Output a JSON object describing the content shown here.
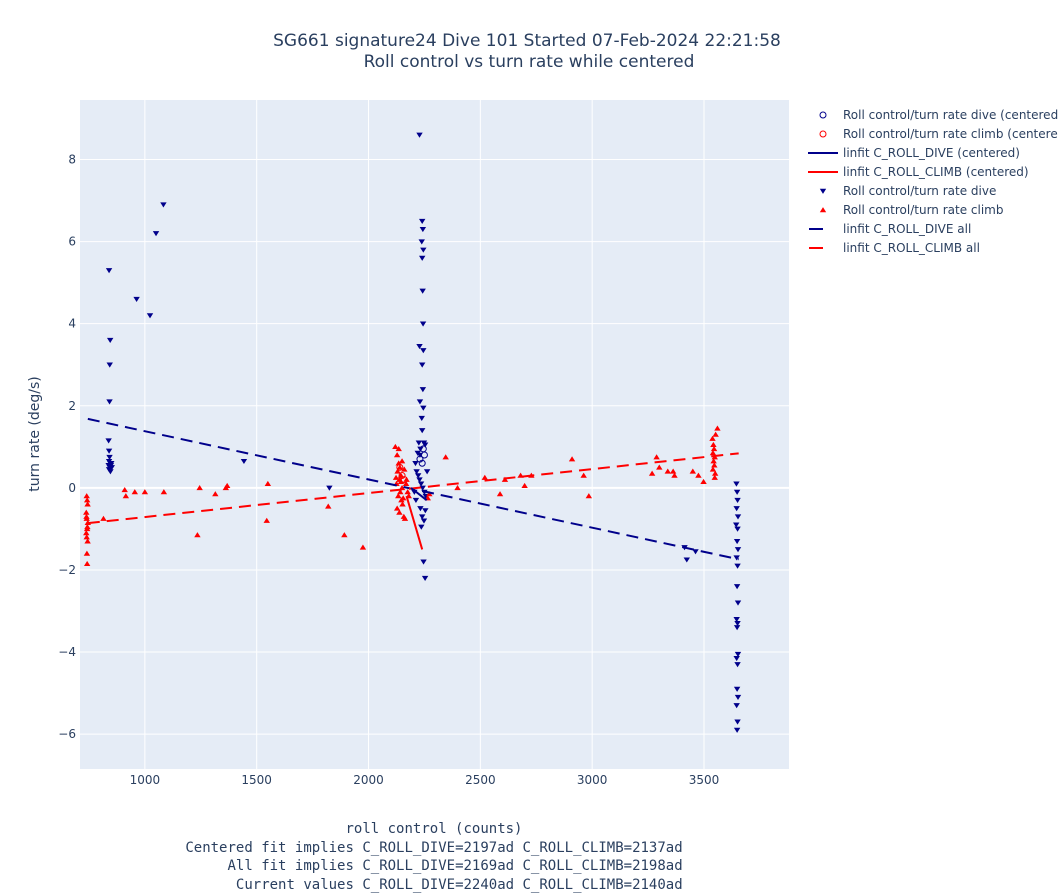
{
  "chart_data": {
    "type": "scatter",
    "title": "SG661 signature24 Dive 101 Started 07-Feb-2024 22:21:58",
    "subtitle": "Roll control vs turn rate while centered",
    "xlabel_lines": [
      "roll control (counts)",
      "Centered fit implies C_ROLL_DIVE=2197ad C_ROLL_CLIMB=2137ad",
      "     All fit implies C_ROLL_DIVE=2169ad C_ROLL_CLIMB=2198ad",
      "      Current values C_ROLL_DIVE=2240ad C_ROLL_CLIMB=2140ad"
    ],
    "ylabel": "turn rate (deg/s)",
    "xlim": [
      710,
      3880
    ],
    "ylim": [
      -6.85,
      9.45
    ],
    "xticks": [
      1000,
      1500,
      2000,
      2500,
      3000,
      3500
    ],
    "yticks": [
      -6,
      -4,
      -2,
      0,
      2,
      4,
      6,
      8
    ],
    "grid": true,
    "legend_position": "top-right-outside",
    "colors": {
      "dive": "#00008b",
      "climb": "#ff0000"
    },
    "series": [
      {
        "name": "Roll control/turn rate dive (centered)",
        "kind": "open-circle",
        "color": "#00008b",
        "points": [
          [
            2230,
            0.7
          ],
          [
            2245,
            0.95
          ],
          [
            2250,
            0.8
          ],
          [
            2240,
            0.6
          ]
        ]
      },
      {
        "name": "Roll control/turn rate climb (centered)",
        "kind": "open-circle",
        "color": "#ff0000",
        "points": [
          [
            2140,
            0.5
          ],
          [
            2150,
            0.3
          ],
          [
            2160,
            0.2
          ]
        ]
      },
      {
        "name": "linfit C_ROLL_DIVE (centered)",
        "kind": "line",
        "color": "#00008b",
        "points": [
          [
            2190,
            0.0
          ],
          [
            2260,
            -0.3
          ]
        ]
      },
      {
        "name": "linfit C_ROLL_CLIMB (centered)",
        "kind": "line",
        "color": "#ff0000",
        "points": [
          [
            2170,
            -0.2
          ],
          [
            2240,
            -1.5
          ]
        ]
      },
      {
        "name": "Roll control/turn rate dive",
        "kind": "triangle-down",
        "color": "#00008b",
        "points": [
          [
            840,
            5.3
          ],
          [
            845,
            3.6
          ],
          [
            843,
            3.0
          ],
          [
            842,
            2.1
          ],
          [
            838,
            1.15
          ],
          [
            840,
            0.9
          ],
          [
            842,
            0.75
          ],
          [
            840,
            0.65
          ],
          [
            845,
            0.6
          ],
          [
            838,
            0.55
          ],
          [
            843,
            0.5
          ],
          [
            840,
            0.45
          ],
          [
            846,
            0.4
          ],
          [
            850,
            0.6
          ],
          [
            848,
            0.55
          ],
          [
            852,
            0.5
          ],
          [
            963,
            4.6
          ],
          [
            1023,
            4.2
          ],
          [
            1050,
            6.2
          ],
          [
            1083,
            6.9
          ],
          [
            1443,
            0.65
          ],
          [
            1825,
            0.0
          ],
          [
            2228,
            8.6
          ],
          [
            2240,
            6.5
          ],
          [
            2243,
            6.3
          ],
          [
            2238,
            6.0
          ],
          [
            2245,
            5.8
          ],
          [
            2240,
            5.6
          ],
          [
            2242,
            4.8
          ],
          [
            2244,
            4.0
          ],
          [
            2228,
            3.45
          ],
          [
            2245,
            3.35
          ],
          [
            2240,
            3.0
          ],
          [
            2243,
            2.4
          ],
          [
            2230,
            2.1
          ],
          [
            2245,
            1.95
          ],
          [
            2238,
            1.7
          ],
          [
            2240,
            1.4
          ],
          [
            2225,
            1.1
          ],
          [
            2248,
            1.1
          ],
          [
            2253,
            1.05
          ],
          [
            2232,
            0.95
          ],
          [
            2220,
            0.85
          ],
          [
            2210,
            0.6
          ],
          [
            2215,
            0.4
          ],
          [
            2222,
            0.3
          ],
          [
            2228,
            0.2
          ],
          [
            2235,
            0.1
          ],
          [
            2242,
            0.0
          ],
          [
            2250,
            -0.1
          ],
          [
            2256,
            -0.2
          ],
          [
            2262,
            0.4
          ],
          [
            2205,
            -0.1
          ],
          [
            2212,
            -0.3
          ],
          [
            2232,
            -0.5
          ],
          [
            2240,
            -0.7
          ],
          [
            2248,
            -0.8
          ],
          [
            2254,
            -0.55
          ],
          [
            2246,
            -1.8
          ],
          [
            2253,
            -2.2
          ],
          [
            2236,
            -0.95
          ],
          [
            2230,
            0.8
          ],
          [
            3413,
            -1.45
          ],
          [
            3423,
            -1.75
          ],
          [
            3462,
            -1.55
          ],
          [
            3645,
            0.1
          ],
          [
            3648,
            -0.1
          ],
          [
            3650,
            -0.3
          ],
          [
            3646,
            -0.5
          ],
          [
            3652,
            -0.7
          ],
          [
            3644,
            -0.9
          ],
          [
            3650,
            -1.0
          ],
          [
            3648,
            -1.3
          ],
          [
            3652,
            -1.5
          ],
          [
            3646,
            -1.7
          ],
          [
            3650,
            -1.9
          ],
          [
            3648,
            -2.4
          ],
          [
            3652,
            -2.8
          ],
          [
            3646,
            -3.2
          ],
          [
            3650,
            -3.3
          ],
          [
            3648,
            -3.4
          ],
          [
            3652,
            -4.05
          ],
          [
            3646,
            -4.15
          ],
          [
            3650,
            -4.3
          ],
          [
            3648,
            -4.9
          ],
          [
            3652,
            -5.1
          ],
          [
            3646,
            -5.3
          ],
          [
            3650,
            -5.7
          ],
          [
            3648,
            -5.9
          ]
        ]
      },
      {
        "name": "Roll control/turn rate climb",
        "kind": "triangle-up",
        "color": "#ff0000",
        "points": [
          [
            740,
            -0.2
          ],
          [
            742,
            -0.3
          ],
          [
            744,
            -0.4
          ],
          [
            738,
            -0.6
          ],
          [
            740,
            -0.75
          ],
          [
            745,
            -0.85
          ],
          [
            742,
            -1.0
          ],
          [
            738,
            -1.1
          ],
          [
            740,
            -1.2
          ],
          [
            744,
            -1.3
          ],
          [
            741,
            -1.6
          ],
          [
            742,
            -1.85
          ],
          [
            743,
            -0.95
          ],
          [
            739,
            -0.7
          ],
          [
            815,
            -0.75
          ],
          [
            910,
            -0.05
          ],
          [
            915,
            -0.2
          ],
          [
            955,
            -0.1
          ],
          [
            1000,
            -0.1
          ],
          [
            1085,
            -0.1
          ],
          [
            1235,
            -1.15
          ],
          [
            1245,
            0.0
          ],
          [
            1315,
            -0.15
          ],
          [
            1362,
            0.0
          ],
          [
            1368,
            0.05
          ],
          [
            1545,
            -0.8
          ],
          [
            1550,
            0.1
          ],
          [
            1820,
            -0.45
          ],
          [
            1892,
            -1.15
          ],
          [
            1975,
            -1.45
          ],
          [
            2120,
            1.0
          ],
          [
            2128,
            0.8
          ],
          [
            2135,
            0.6
          ],
          [
            2140,
            0.5
          ],
          [
            2130,
            0.4
          ],
          [
            2145,
            0.3
          ],
          [
            2138,
            0.2
          ],
          [
            2125,
            0.1
          ],
          [
            2150,
            0.0
          ],
          [
            2142,
            -0.1
          ],
          [
            2133,
            -0.2
          ],
          [
            2147,
            -0.3
          ],
          [
            2152,
            -0.4
          ],
          [
            2128,
            -0.5
          ],
          [
            2138,
            -0.6
          ],
          [
            2158,
            -0.7
          ],
          [
            2163,
            -0.75
          ],
          [
            2170,
            0.2
          ],
          [
            2168,
            0.1
          ],
          [
            2175,
            -0.1
          ],
          [
            2180,
            -0.2
          ],
          [
            2123,
            0.25
          ],
          [
            2160,
            0.45
          ],
          [
            2150,
            0.65
          ],
          [
            2135,
            0.95
          ],
          [
            2145,
            0.15
          ],
          [
            2155,
            -0.25
          ],
          [
            2265,
            -0.25
          ],
          [
            2272,
            -0.15
          ],
          [
            2345,
            0.75
          ],
          [
            2398,
            0.0
          ],
          [
            2520,
            0.25
          ],
          [
            2588,
            -0.15
          ],
          [
            2610,
            0.2
          ],
          [
            2680,
            0.3
          ],
          [
            2698,
            0.05
          ],
          [
            2728,
            0.3
          ],
          [
            2910,
            0.7
          ],
          [
            2962,
            0.3
          ],
          [
            2985,
            -0.2
          ],
          [
            3268,
            0.35
          ],
          [
            3288,
            0.75
          ],
          [
            3300,
            0.5
          ],
          [
            3338,
            0.4
          ],
          [
            3362,
            0.4
          ],
          [
            3368,
            0.3
          ],
          [
            3450,
            0.4
          ],
          [
            3475,
            0.3
          ],
          [
            3498,
            0.15
          ],
          [
            3538,
            1.2
          ],
          [
            3542,
            1.05
          ],
          [
            3545,
            0.95
          ],
          [
            3540,
            0.85
          ],
          [
            3548,
            0.75
          ],
          [
            3543,
            0.65
          ],
          [
            3546,
            0.55
          ],
          [
            3540,
            0.45
          ],
          [
            3550,
            0.35
          ],
          [
            3552,
            1.3
          ],
          [
            3560,
            1.45
          ],
          [
            3548,
            0.25
          ]
        ]
      },
      {
        "name": "linfit C_ROLL_DIVE all",
        "kind": "dashed-line",
        "color": "#00008b",
        "points": [
          [
            745,
            1.68
          ],
          [
            3655,
            -1.74
          ]
        ]
      },
      {
        "name": "linfit C_ROLL_CLIMB all",
        "kind": "dashed-line",
        "color": "#ff0000",
        "points": [
          [
            745,
            -0.86
          ],
          [
            3655,
            0.84
          ]
        ]
      }
    ]
  }
}
